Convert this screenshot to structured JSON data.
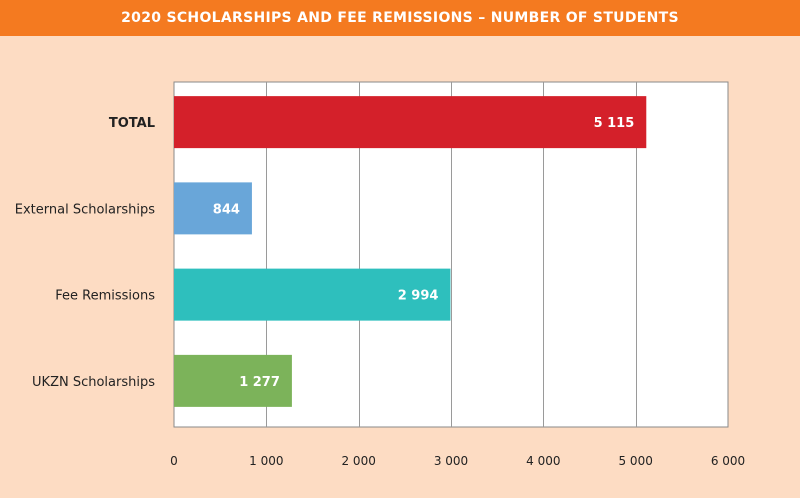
{
  "title": "2020 SCHOLARSHIPS AND FEE REMISSIONS – NUMBER OF STUDENTS",
  "colors": {
    "title_bar": "#f47a20",
    "background": "#fddcc3",
    "plot_bg": "#ffffff"
  },
  "chart_data": {
    "type": "bar",
    "orientation": "horizontal",
    "title": "2020 SCHOLARSHIPS AND FEE REMISSIONS – NUMBER OF STUDENTS",
    "categories": [
      "TOTAL",
      "External Scholarships",
      "Fee Remissions",
      "UKZN Scholarships"
    ],
    "values": [
      5115,
      844,
      2994,
      1277
    ],
    "value_labels": [
      "5 115",
      "844",
      "2 994",
      "1 277"
    ],
    "bar_colors": [
      "#d4202a",
      "#69a6d9",
      "#2ebfbd",
      "#7cb35a"
    ],
    "xlim": [
      0,
      6000
    ],
    "xticks": [
      0,
      1000,
      2000,
      3000,
      4000,
      5000,
      6000
    ],
    "xtick_labels": [
      "0",
      "1 000",
      "2 000",
      "3 000",
      "4 000",
      "5 000",
      "6 000"
    ],
    "grid": "vertical",
    "legend": "none"
  }
}
